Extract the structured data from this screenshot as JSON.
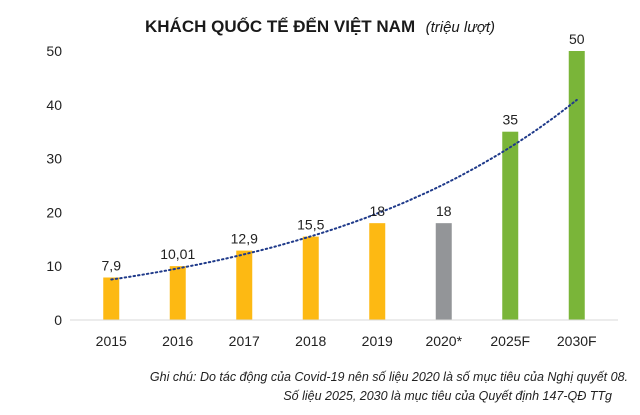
{
  "chart_data": {
    "type": "bar",
    "title": "KHÁCH QUỐC TẾ ĐẾN VIỆT NAM",
    "subtitle": "(triệu lượt)",
    "xlabel": "",
    "ylabel": "",
    "ylim": [
      0,
      50
    ],
    "yticks": [
      "0",
      "10",
      "20",
      "30",
      "40",
      "50"
    ],
    "grid": false,
    "legend": "none",
    "categories": [
      "2015",
      "2016",
      "2017",
      "2018",
      "2019",
      "2020*",
      "2025F",
      "2030F"
    ],
    "values": [
      7.9,
      10.01,
      12.9,
      15.5,
      18,
      18,
      35,
      50
    ],
    "value_labels": [
      "7,9",
      "10,01",
      "12,9",
      "15,5",
      "18",
      "18",
      "35",
      "50"
    ],
    "bar_colors": [
      "#FDB913",
      "#FDB913",
      "#FDB913",
      "#FDB913",
      "#FDB913",
      "#939598",
      "#7AB539",
      "#7AB539"
    ],
    "trendline": {
      "type": "exponential",
      "style": "dotted",
      "color": "#1F3A8A"
    }
  },
  "notes": [
    "Ghi chú: Do tác động của Covid-19 nên số liệu 2020 là số mục tiêu của Nghị quyết 08.",
    "Số liệu 2025, 2030 là mục tiêu của Quyết định 147-QĐ TTg"
  ]
}
